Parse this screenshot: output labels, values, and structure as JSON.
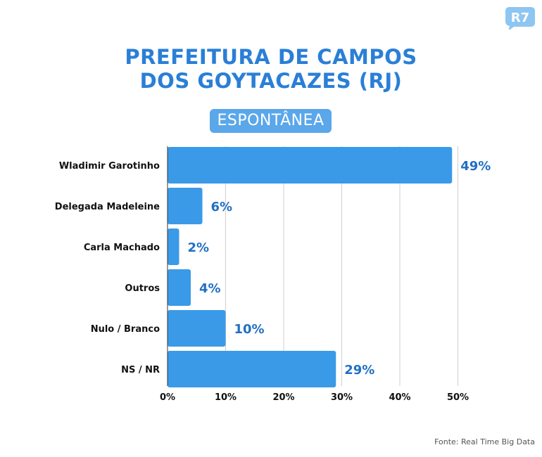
{
  "title_line1": "PREFEITURA DE CAMPOS",
  "title_line2": "DOS GOYTACAZES (RJ)",
  "badge": "ESPONTÂNEA",
  "logo_text": "R7",
  "source": "Fonte: Real Time Big Data",
  "colors": {
    "bar": "#3a9ae8",
    "title": "#2a7fd6",
    "value_label": "#2170c4",
    "badge": "#5aa7ea"
  },
  "chart_data": {
    "type": "bar",
    "orientation": "horizontal",
    "categories": [
      "Wladimir Garotinho",
      "Delegada Madeleine",
      "Carla Machado",
      "Outros",
      "Nulo / Branco",
      "NS / NR"
    ],
    "values": [
      49,
      6,
      2,
      4,
      10,
      29
    ],
    "value_labels": [
      "49%",
      "6%",
      "2%",
      "4%",
      "10%",
      "29%"
    ],
    "xticks": [
      0,
      10,
      20,
      30,
      40,
      50
    ],
    "xtick_labels": [
      "0%",
      "10%",
      "20%",
      "30%",
      "40%",
      "50%"
    ],
    "xlim": [
      0,
      50
    ],
    "grid": true
  }
}
